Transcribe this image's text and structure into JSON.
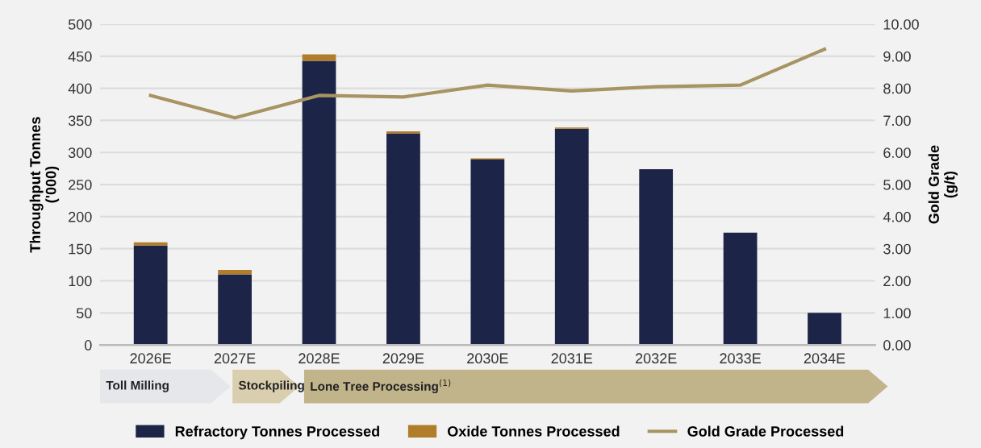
{
  "chart_data": {
    "type": "bar",
    "stacked": true,
    "categories": [
      "2026E",
      "2027E",
      "2028E",
      "2029E",
      "2030E",
      "2031E",
      "2032E",
      "2033E",
      "2034E"
    ],
    "series": [
      {
        "name": "Refractory Tonnes Processed",
        "color": "#1c2447",
        "values": [
          155,
          110,
          443,
          330,
          289,
          337,
          274,
          175,
          50
        ]
      },
      {
        "name": "Oxide Tonnes Processed",
        "color": "#b07d2a",
        "values": [
          5,
          7,
          10,
          3,
          2,
          2,
          0,
          0,
          0
        ]
      },
      {
        "name": "Gold Grade Processed",
        "type": "line",
        "axis": "y2",
        "color": "#a89462",
        "values": [
          7.78,
          7.08,
          7.78,
          7.73,
          8.1,
          7.92,
          8.05,
          8.1,
          9.22
        ]
      }
    ],
    "ylabel": "Throughput Tonnes\n('000)",
    "y2label": "Gold Grade\n(g/t)",
    "ylim": [
      0,
      500
    ],
    "yticks": [
      0,
      50,
      100,
      150,
      200,
      250,
      300,
      350,
      400,
      450,
      500
    ],
    "y2lim": [
      0,
      10
    ],
    "y2ticks": [
      {
        "value": 0,
        "label": "0.00"
      },
      {
        "value": 1,
        "label": "1.00"
      },
      {
        "value": 2,
        "label": "2.00"
      },
      {
        "value": 3,
        "label": "3.00"
      },
      {
        "value": 4,
        "label": "4.00"
      },
      {
        "value": 5,
        "label": "5.00"
      },
      {
        "value": 6,
        "label": "6.00"
      },
      {
        "value": 7,
        "label": "7.00"
      },
      {
        "value": 8,
        "label": "8.00"
      },
      {
        "value": 9,
        "label": "9.00"
      },
      {
        "value": 10,
        "label": "10.00"
      }
    ],
    "grid": "y",
    "legend": "bottom",
    "annotations": [
      "Toll Milling",
      "Stockpiling",
      "Lone Tree Processing$^{(1)}$"
    ]
  }
}
